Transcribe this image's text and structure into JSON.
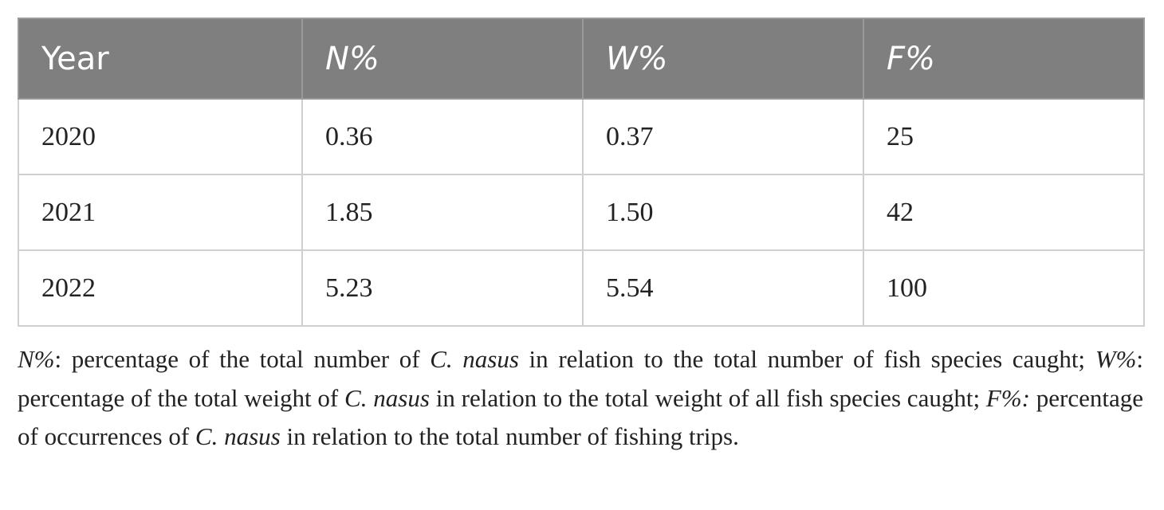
{
  "table": {
    "header": [
      "Year",
      "N%",
      "W%",
      "F%"
    ],
    "rows": [
      [
        "2020",
        "0.36",
        "0.37",
        "25"
      ],
      [
        "2021",
        "1.85",
        "1.50",
        "42"
      ],
      [
        "2022",
        "5.23",
        "5.54",
        "100"
      ]
    ]
  },
  "footnote": [
    {
      "text": "N%",
      "italic": true
    },
    {
      "text": ": percentage of the total number of ",
      "italic": false
    },
    {
      "text": "C. nasus",
      "italic": true
    },
    {
      "text": " in relation to the total number of fish species caught; ",
      "italic": false
    },
    {
      "text": "W%",
      "italic": true
    },
    {
      "text": ": percentage of the total weight of ",
      "italic": false
    },
    {
      "text": "C. nasus",
      "italic": true
    },
    {
      "text": " in relation to the total weight of all fish species caught; ",
      "italic": false
    },
    {
      "text": "F%:",
      "italic": true
    },
    {
      "text": " percentage of occurrences of ",
      "italic": false
    },
    {
      "text": "C. nasus",
      "italic": true
    },
    {
      "text": " in relation to the total number of fishing trips.",
      "italic": false
    }
  ]
}
